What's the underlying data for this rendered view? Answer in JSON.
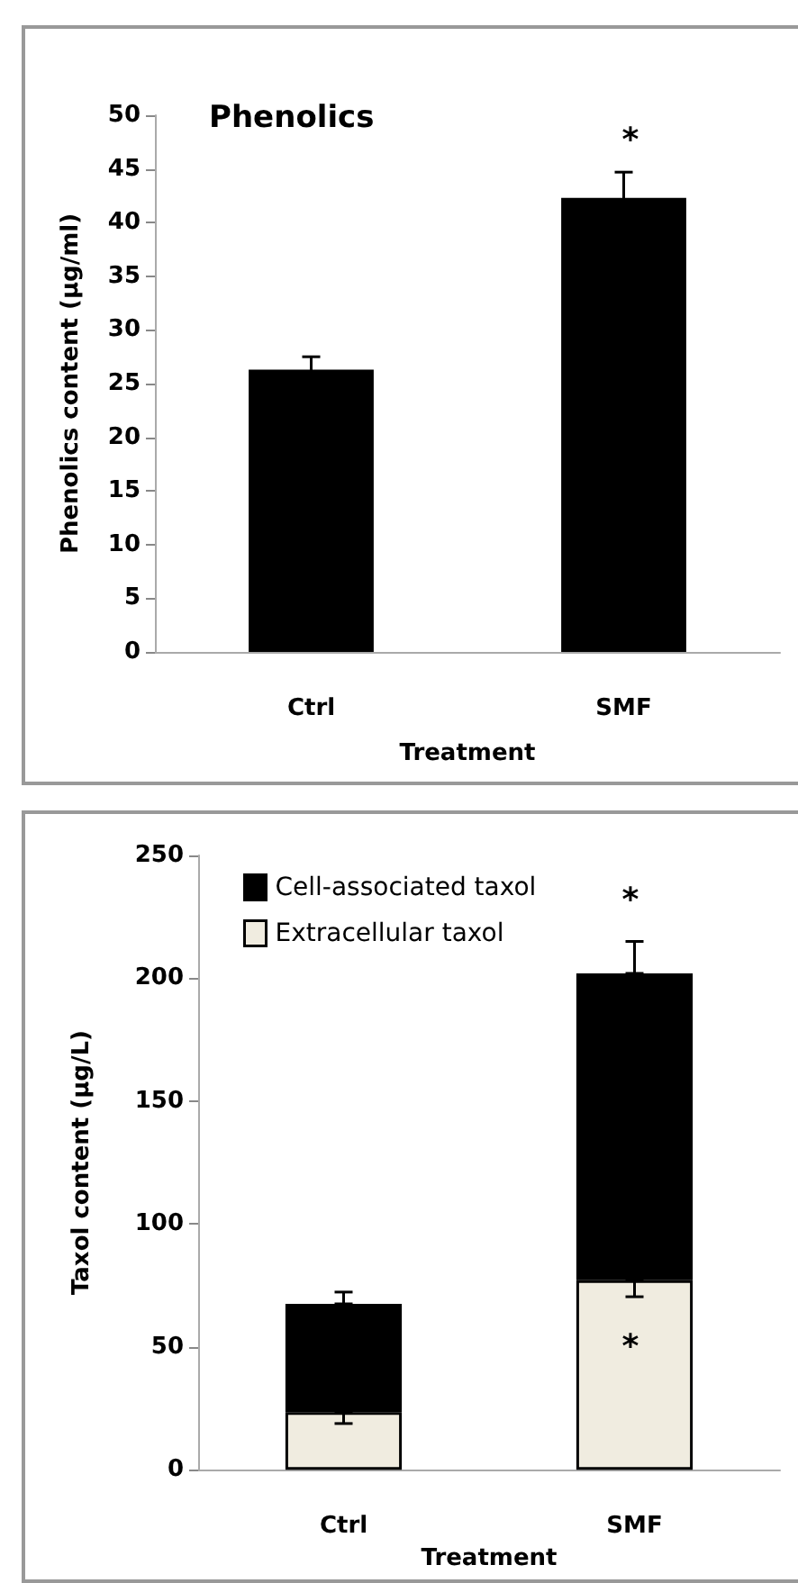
{
  "chart_data": [
    {
      "type": "bar",
      "title": "Phenolics",
      "xlabel": "Treatment",
      "ylabel": "Phenolics content (µg/ml)",
      "categories": [
        "Ctrl",
        "SMF"
      ],
      "series": [
        {
          "color": "#000000",
          "values": [
            26.3,
            42.3
          ],
          "errors": [
            1.2,
            2.4
          ]
        }
      ],
      "ylim": [
        0,
        50
      ],
      "yticks": [
        0,
        5,
        10,
        15,
        20,
        25,
        30,
        35,
        40,
        45,
        50
      ],
      "grid": false,
      "legend": false,
      "annotations": [
        "*"
      ]
    },
    {
      "type": "bar",
      "xlabel": "Treatment",
      "ylabel": "Taxol content (µg/L)",
      "categories": [
        "Ctrl",
        "SMF"
      ],
      "stacked": true,
      "series": [
        {
          "name": "Extracellular taxol",
          "color": "#f0ece0",
          "values": [
            23.4,
            77.1
          ],
          "errors": [
            [
              18.8,
              23.4
            ],
            [
              70.4,
              77.1
            ]
          ]
        },
        {
          "name": "Cell-associated taxol",
          "color": "#000000",
          "values": [
            44.1,
            124.9
          ],
          "errors": [
            [
              67.5,
              72.3
            ],
            [
              202,
              215
            ]
          ]
        }
      ],
      "ylim": [
        0,
        250
      ],
      "yticks": [
        0,
        50,
        100,
        150,
        200,
        250
      ],
      "grid": false,
      "legend": "top left",
      "annotations": [
        "*",
        "*"
      ]
    }
  ]
}
